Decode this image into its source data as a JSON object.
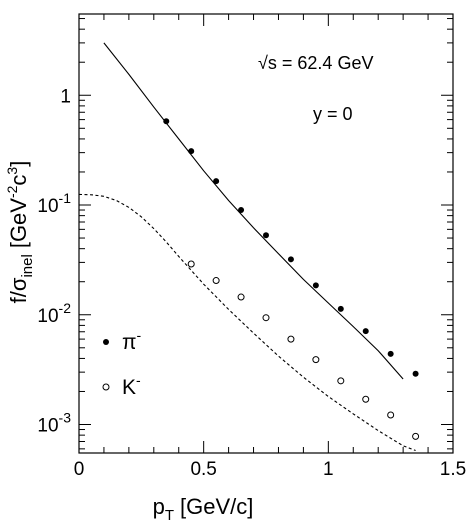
{
  "chart_data": {
    "type": "scatter",
    "xlabel": "p",
    "xlabel_sub": "T",
    "xlabel_unit": "[GeV/c]",
    "ylabel": "f/σ",
    "ylabel_sub": "inel",
    "ylabel_unit_open": "[GeV",
    "ylabel_unit_sup1": "-2",
    "ylabel_unit_mid": "c",
    "ylabel_unit_sup2": "3",
    "ylabel_unit_close": "]",
    "xlim": [
      0,
      1.5
    ],
    "ylim": [
      0.00055,
      5.5
    ],
    "yscale": "log",
    "x_ticks": [
      {
        "value": 0,
        "label": "0"
      },
      {
        "value": 0.5,
        "label": "0.5"
      },
      {
        "value": 1,
        "label": "1"
      },
      {
        "value": 1.5,
        "label": "1.5"
      }
    ],
    "y_ticks": [
      {
        "value": 1,
        "label": "1",
        "base": "",
        "exp": ""
      },
      {
        "value": 0.1,
        "label": "",
        "base": "10",
        "exp": "-1"
      },
      {
        "value": 0.01,
        "label": "",
        "base": "10",
        "exp": "-2"
      },
      {
        "value": 0.001,
        "label": "",
        "base": "10",
        "exp": "-3"
      }
    ],
    "annotations": {
      "energy_prefix": "√s",
      "energy_value": " = 62.4 GeV",
      "rapidity": "y = 0"
    },
    "legend_position": "bottom-left",
    "series": [
      {
        "name": "π",
        "name_sup": "-",
        "marker": "filled-circle",
        "x": [
          0.35,
          0.45,
          0.55,
          0.65,
          0.75,
          0.85,
          0.95,
          1.05,
          1.15,
          1.25,
          1.35
        ],
        "y": [
          0.58,
          0.31,
          0.165,
          0.09,
          0.053,
          0.032,
          0.0185,
          0.0113,
          0.0071,
          0.0044,
          0.0029
        ]
      },
      {
        "name": "K",
        "name_sup": "-",
        "marker": "open-circle",
        "x": [
          0.45,
          0.55,
          0.65,
          0.75,
          0.85,
          0.95,
          1.05,
          1.15,
          1.25,
          1.35
        ],
        "y": [
          0.029,
          0.0205,
          0.0145,
          0.0094,
          0.006,
          0.0039,
          0.0025,
          0.0017,
          0.00122,
          0.00078
        ]
      }
    ],
    "curves": [
      {
        "style": "solid",
        "x": [
          0.1,
          0.2,
          0.3,
          0.4,
          0.5,
          0.6,
          0.7,
          0.8,
          0.9,
          1.0,
          1.1,
          1.2,
          1.3
        ],
        "y": [
          3.0,
          1.55,
          0.78,
          0.4,
          0.205,
          0.11,
          0.062,
          0.036,
          0.021,
          0.0128,
          0.0078,
          0.0047,
          0.0026
        ]
      },
      {
        "style": "dashed",
        "x": [
          0.0,
          0.05,
          0.1,
          0.15,
          0.2,
          0.25,
          0.3,
          0.35,
          0.4,
          0.5,
          0.6,
          0.7,
          0.8,
          0.9,
          1.0,
          1.1,
          1.2,
          1.3,
          1.35
        ],
        "y": [
          0.125,
          0.124,
          0.12,
          0.11,
          0.095,
          0.078,
          0.061,
          0.046,
          0.034,
          0.019,
          0.0112,
          0.0068,
          0.0042,
          0.0027,
          0.0018,
          0.00125,
          0.00088,
          0.00064,
          0.00058
        ]
      }
    ]
  }
}
